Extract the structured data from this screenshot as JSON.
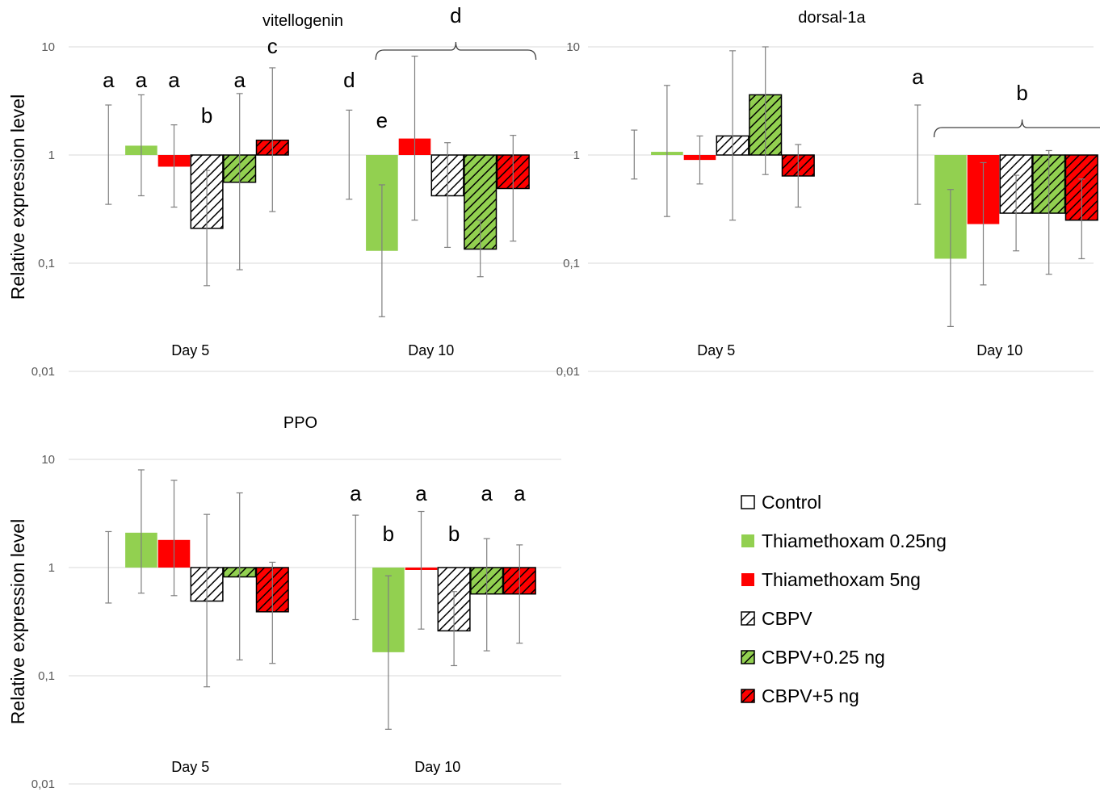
{
  "colors": {
    "control": "#ffffff",
    "thiam_low": "#92d050",
    "thiam_high": "#ff0000",
    "hatch_stroke": "#000000",
    "grid": "#d9d9d9",
    "errorbar": "#7f7f7f"
  },
  "legend": [
    {
      "label": "Control",
      "fill": "control",
      "hatch": false
    },
    {
      "label": "Thiamethoxam 0.25ng",
      "fill": "thiam_low",
      "hatch": false
    },
    {
      "label": "Thiamethoxam 5ng",
      "fill": "thiam_high",
      "hatch": false
    },
    {
      "label": "CBPV",
      "fill": "control",
      "hatch": true
    },
    {
      "label": "CBPV+0.25 ng",
      "fill": "thiam_low",
      "hatch": true
    },
    {
      "label": "CBPV+5 ng",
      "fill": "thiam_high",
      "hatch": true
    }
  ],
  "chart_data": [
    {
      "type": "bar",
      "title": "vitellogenin",
      "ylabel": "Relative expression level",
      "yscale": "log",
      "ylim": [
        0.01,
        10
      ],
      "yticks": [
        "0,01",
        "0,1",
        "1",
        "10"
      ],
      "categories": [
        "Day 5",
        "Day 10"
      ],
      "series": [
        {
          "name": "Control",
          "values": [
            1,
            1
          ],
          "err_low": [
            0.35,
            0.39
          ],
          "err_high": [
            2.9,
            2.6
          ]
        },
        {
          "name": "Thiamethoxam 0.25ng",
          "values": [
            1.22,
            0.13
          ],
          "err_low": [
            0.42,
            0.032
          ],
          "err_high": [
            3.6,
            0.53
          ]
        },
        {
          "name": "Thiamethoxam 5ng",
          "values": [
            0.78,
            1.42
          ],
          "err_low": [
            0.33,
            0.25
          ],
          "err_high": [
            1.9,
            8.2
          ]
        },
        {
          "name": "CBPV",
          "values": [
            0.21,
            0.42
          ],
          "err_low": [
            0.062,
            0.14
          ],
          "err_high": [
            0.72,
            1.3
          ]
        },
        {
          "name": "CBPV+0.25 ng",
          "values": [
            0.56,
            0.135
          ],
          "err_low": [
            0.087,
            0.075
          ],
          "err_high": [
            3.7,
            0.25
          ]
        },
        {
          "name": "CBPV+5 ng",
          "values": [
            1.37,
            0.49
          ],
          "err_low": [
            0.3,
            0.16
          ],
          "err_high": [
            6.4,
            1.52
          ]
        }
      ],
      "significance": [
        [
          "a",
          "a",
          "a",
          "b",
          "a",
          "c"
        ],
        [
          "d",
          "e",
          "",
          "",
          "",
          ""
        ]
      ],
      "bracket": {
        "day": 1,
        "from": 2,
        "to": 5,
        "label": "d"
      }
    },
    {
      "type": "bar",
      "title": "dorsal-1a",
      "ylabel": "",
      "yscale": "log",
      "ylim": [
        0.01,
        10
      ],
      "yticks": [
        "0,01",
        "0,1",
        "1",
        "10"
      ],
      "categories": [
        "Day 5",
        "Day 10"
      ],
      "series": [
        {
          "name": "Control",
          "values": [
            1,
            1
          ],
          "err_low": [
            0.6,
            0.35
          ],
          "err_high": [
            1.7,
            2.9
          ]
        },
        {
          "name": "Thiamethoxam 0.25ng",
          "values": [
            1.07,
            0.11
          ],
          "err_low": [
            0.27,
            0.026
          ],
          "err_high": [
            4.4,
            0.48
          ]
        },
        {
          "name": "Thiamethoxam 5ng",
          "values": [
            0.9,
            0.23
          ],
          "err_low": [
            0.54,
            0.063
          ],
          "err_high": [
            1.5,
            0.85
          ]
        },
        {
          "name": "CBPV",
          "values": [
            1.5,
            0.29
          ],
          "err_low": [
            0.25,
            0.13
          ],
          "err_high": [
            9.2,
            0.65
          ]
        },
        {
          "name": "CBPV+0.25 ng",
          "values": [
            3.6,
            0.29
          ],
          "err_low": [
            0.66,
            0.079
          ],
          "err_high": [
            10,
            1.1
          ]
        },
        {
          "name": "CBPV+5 ng",
          "values": [
            0.64,
            0.25
          ],
          "err_low": [
            0.33,
            0.11
          ],
          "err_high": [
            1.25,
            0.6
          ]
        }
      ],
      "significance": [
        [
          "",
          "",
          "",
          "",
          "",
          ""
        ],
        [
          "a",
          "",
          "",
          "",
          "",
          ""
        ]
      ],
      "bracket": {
        "day": 1,
        "from": 1,
        "to": 5,
        "label": "b"
      }
    },
    {
      "type": "bar",
      "title": "PPO",
      "ylabel": "Relative expression level",
      "yscale": "log",
      "ylim": [
        0.01,
        10
      ],
      "yticks": [
        "0,01",
        "0,1",
        "1",
        "10"
      ],
      "categories": [
        "Day 5",
        "Day 10"
      ],
      "series": [
        {
          "name": "Control",
          "values": [
            1,
            1
          ],
          "err_low": [
            0.47,
            0.33
          ],
          "err_high": [
            2.15,
            3.05
          ]
        },
        {
          "name": "Thiamethoxam 0.25ng",
          "values": [
            2.1,
            0.165
          ],
          "err_low": [
            0.58,
            0.032
          ],
          "err_high": [
            8.0,
            0.84
          ]
        },
        {
          "name": "Thiamethoxam 5ng",
          "values": [
            1.8,
            0.95
          ],
          "err_low": [
            0.55,
            0.27
          ],
          "err_high": [
            6.4,
            3.3
          ]
        },
        {
          "name": "CBPV",
          "values": [
            0.49,
            0.26
          ],
          "err_low": [
            0.079,
            0.124
          ],
          "err_high": [
            3.1,
            0.6
          ]
        },
        {
          "name": "CBPV+0.25 ng",
          "values": [
            0.82,
            0.57
          ],
          "err_low": [
            0.14,
            0.17
          ],
          "err_high": [
            4.9,
            1.85
          ]
        },
        {
          "name": "CBPV+5 ng",
          "values": [
            0.39,
            0.57
          ],
          "err_low": [
            0.13,
            0.2
          ],
          "err_high": [
            1.12,
            1.62
          ]
        }
      ],
      "significance": [
        [
          "",
          "",
          "",
          "",
          "",
          ""
        ],
        [
          "a",
          "b",
          "a",
          "b",
          "a",
          "a"
        ]
      ]
    }
  ]
}
